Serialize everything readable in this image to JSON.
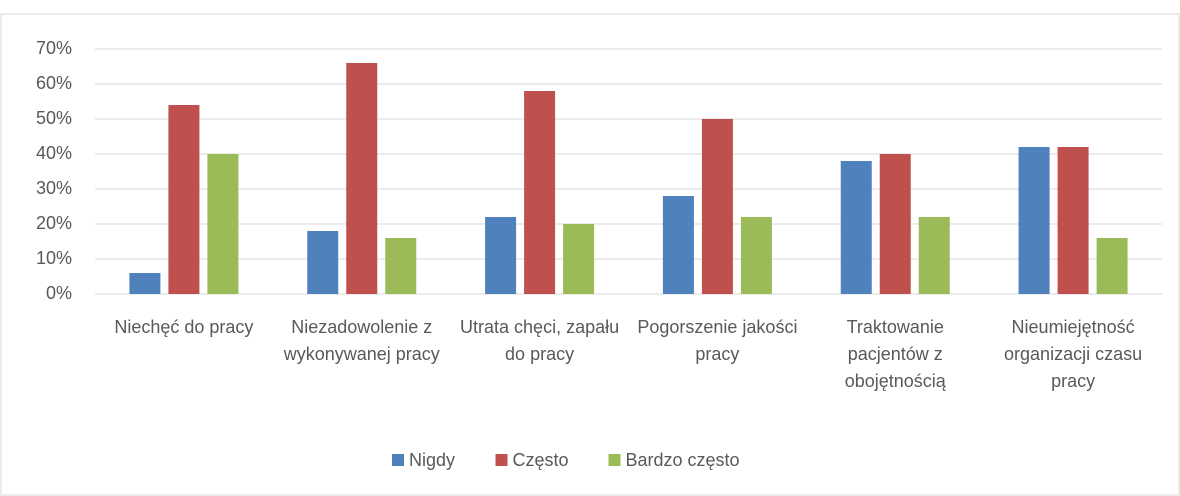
{
  "chart_data": {
    "type": "bar",
    "categories": [
      "Niechęć do pracy",
      "Niezadowolenie z wykonywanej pracy",
      "Utrata chęci, zapału do pracy",
      "Pogorszenie jakości pracy",
      "Traktowanie pacjentów z obojętnością",
      "Nieumiejętność organizacji czasu pracy"
    ],
    "series": [
      {
        "name": "Nigdy",
        "color": "#4f81bd",
        "values": [
          6,
          18,
          22,
          28,
          38,
          42
        ]
      },
      {
        "name": "Często",
        "color": "#c0504d",
        "values": [
          54,
          66,
          58,
          50,
          40,
          42
        ]
      },
      {
        "name": "Bardzo często",
        "color": "#9bbb59",
        "values": [
          40,
          16,
          20,
          22,
          22,
          16
        ]
      }
    ],
    "ylim": [
      0,
      70
    ],
    "yticks": [
      {
        "value": 0,
        "label": "0%"
      },
      {
        "value": 10,
        "label": "10%"
      },
      {
        "value": 20,
        "label": "20%"
      },
      {
        "value": 30,
        "label": "30%"
      },
      {
        "value": 40,
        "label": "40%"
      },
      {
        "value": 50,
        "label": "50%"
      },
      {
        "value": 60,
        "label": "60%"
      },
      {
        "value": 70,
        "label": "70%"
      }
    ],
    "grid": true,
    "legend": "bottom"
  }
}
